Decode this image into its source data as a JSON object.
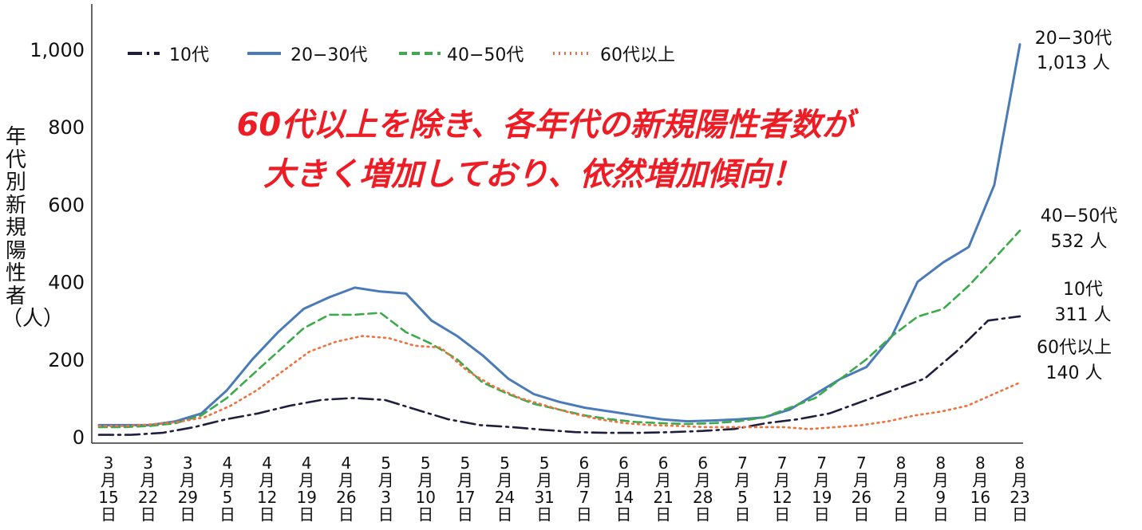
{
  "chart_data": {
    "type": "line",
    "ylabel": "年代別新規陽性者（人）",
    "ylim": [
      0,
      1000
    ],
    "yticks": [
      "0",
      "200",
      "400",
      "600",
      "800",
      "1,000"
    ],
    "x_labels": [
      [
        "3",
        "月",
        "15",
        "日"
      ],
      [
        "3",
        "月",
        "22",
        "日"
      ],
      [
        "3",
        "月",
        "29",
        "日"
      ],
      [
        "4",
        "月",
        "5",
        "日"
      ],
      [
        "4",
        "月",
        "12",
        "日"
      ],
      [
        "4",
        "月",
        "19",
        "日"
      ],
      [
        "4",
        "月",
        "26",
        "日"
      ],
      [
        "5",
        "月",
        "3",
        "日"
      ],
      [
        "5",
        "月",
        "10",
        "日"
      ],
      [
        "5",
        "月",
        "17",
        "日"
      ],
      [
        "5",
        "月",
        "24",
        "日"
      ],
      [
        "5",
        "月",
        "31",
        "日"
      ],
      [
        "6",
        "月",
        "7",
        "日"
      ],
      [
        "6",
        "月",
        "14",
        "日"
      ],
      [
        "6",
        "月",
        "21",
        "日"
      ],
      [
        "6",
        "月",
        "28",
        "日"
      ],
      [
        "7",
        "月",
        "5",
        "日"
      ],
      [
        "7",
        "月",
        "12",
        "日"
      ],
      [
        "7",
        "月",
        "19",
        "日"
      ],
      [
        "7",
        "月",
        "26",
        "日"
      ],
      [
        "8",
        "月",
        "2",
        "日"
      ],
      [
        "8",
        "月",
        "9",
        "日"
      ],
      [
        "8",
        "月",
        "16",
        "日"
      ],
      [
        "8",
        "月",
        "23",
        "日"
      ]
    ],
    "legend_position": "top-left",
    "grid": false,
    "annotation": [
      "60代以上を除き、各年代の新規陽性者数が",
      "大きく増加しており、依然増加傾向！"
    ],
    "series": [
      {
        "name": "10代",
        "color": "#1f1f3d",
        "style": "dashdot",
        "end_label": [
          "10代",
          "311 人"
        ],
        "values": [
          5,
          5,
          10,
          25,
          45,
          60,
          80,
          95,
          100,
          95,
          70,
          45,
          30,
          25,
          18,
          12,
          10,
          10,
          12,
          15,
          20,
          35,
          45,
          60,
          90,
          120,
          150,
          220,
          300,
          311
        ]
      },
      {
        "name": "20−30代",
        "color": "#4a7ab8",
        "style": "solid",
        "end_label": [
          "20−30代",
          "1,013 人"
        ],
        "values": [
          30,
          30,
          30,
          40,
          60,
          120,
          200,
          270,
          330,
          360,
          385,
          375,
          370,
          300,
          260,
          210,
          150,
          110,
          90,
          75,
          65,
          55,
          45,
          40,
          42,
          45,
          50,
          70,
          110,
          150,
          180,
          260,
          400,
          450,
          490,
          650,
          1013
        ]
      },
      {
        "name": "40−50代",
        "color": "#3aaa4a",
        "style": "dashed",
        "end_label": [
          "40−50代",
          "532 人"
        ],
        "values": [
          25,
          25,
          28,
          35,
          55,
          100,
          160,
          220,
          280,
          315,
          315,
          320,
          270,
          240,
          200,
          140,
          110,
          85,
          70,
          55,
          45,
          38,
          35,
          33,
          35,
          40,
          50,
          75,
          100,
          150,
          200,
          260,
          310,
          330,
          390,
          460,
          532
        ]
      },
      {
        "name": "60代以上",
        "color": "#ee7240",
        "style": "dotted",
        "end_label": [
          "60代以上",
          "140 人"
        ],
        "values": [
          28,
          28,
          32,
          38,
          50,
          80,
          120,
          170,
          220,
          245,
          260,
          255,
          235,
          230,
          170,
          130,
          100,
          80,
          60,
          45,
          35,
          30,
          28,
          25,
          25,
          25,
          25,
          20,
          25,
          30,
          40,
          55,
          65,
          80,
          110,
          140
        ]
      }
    ]
  }
}
